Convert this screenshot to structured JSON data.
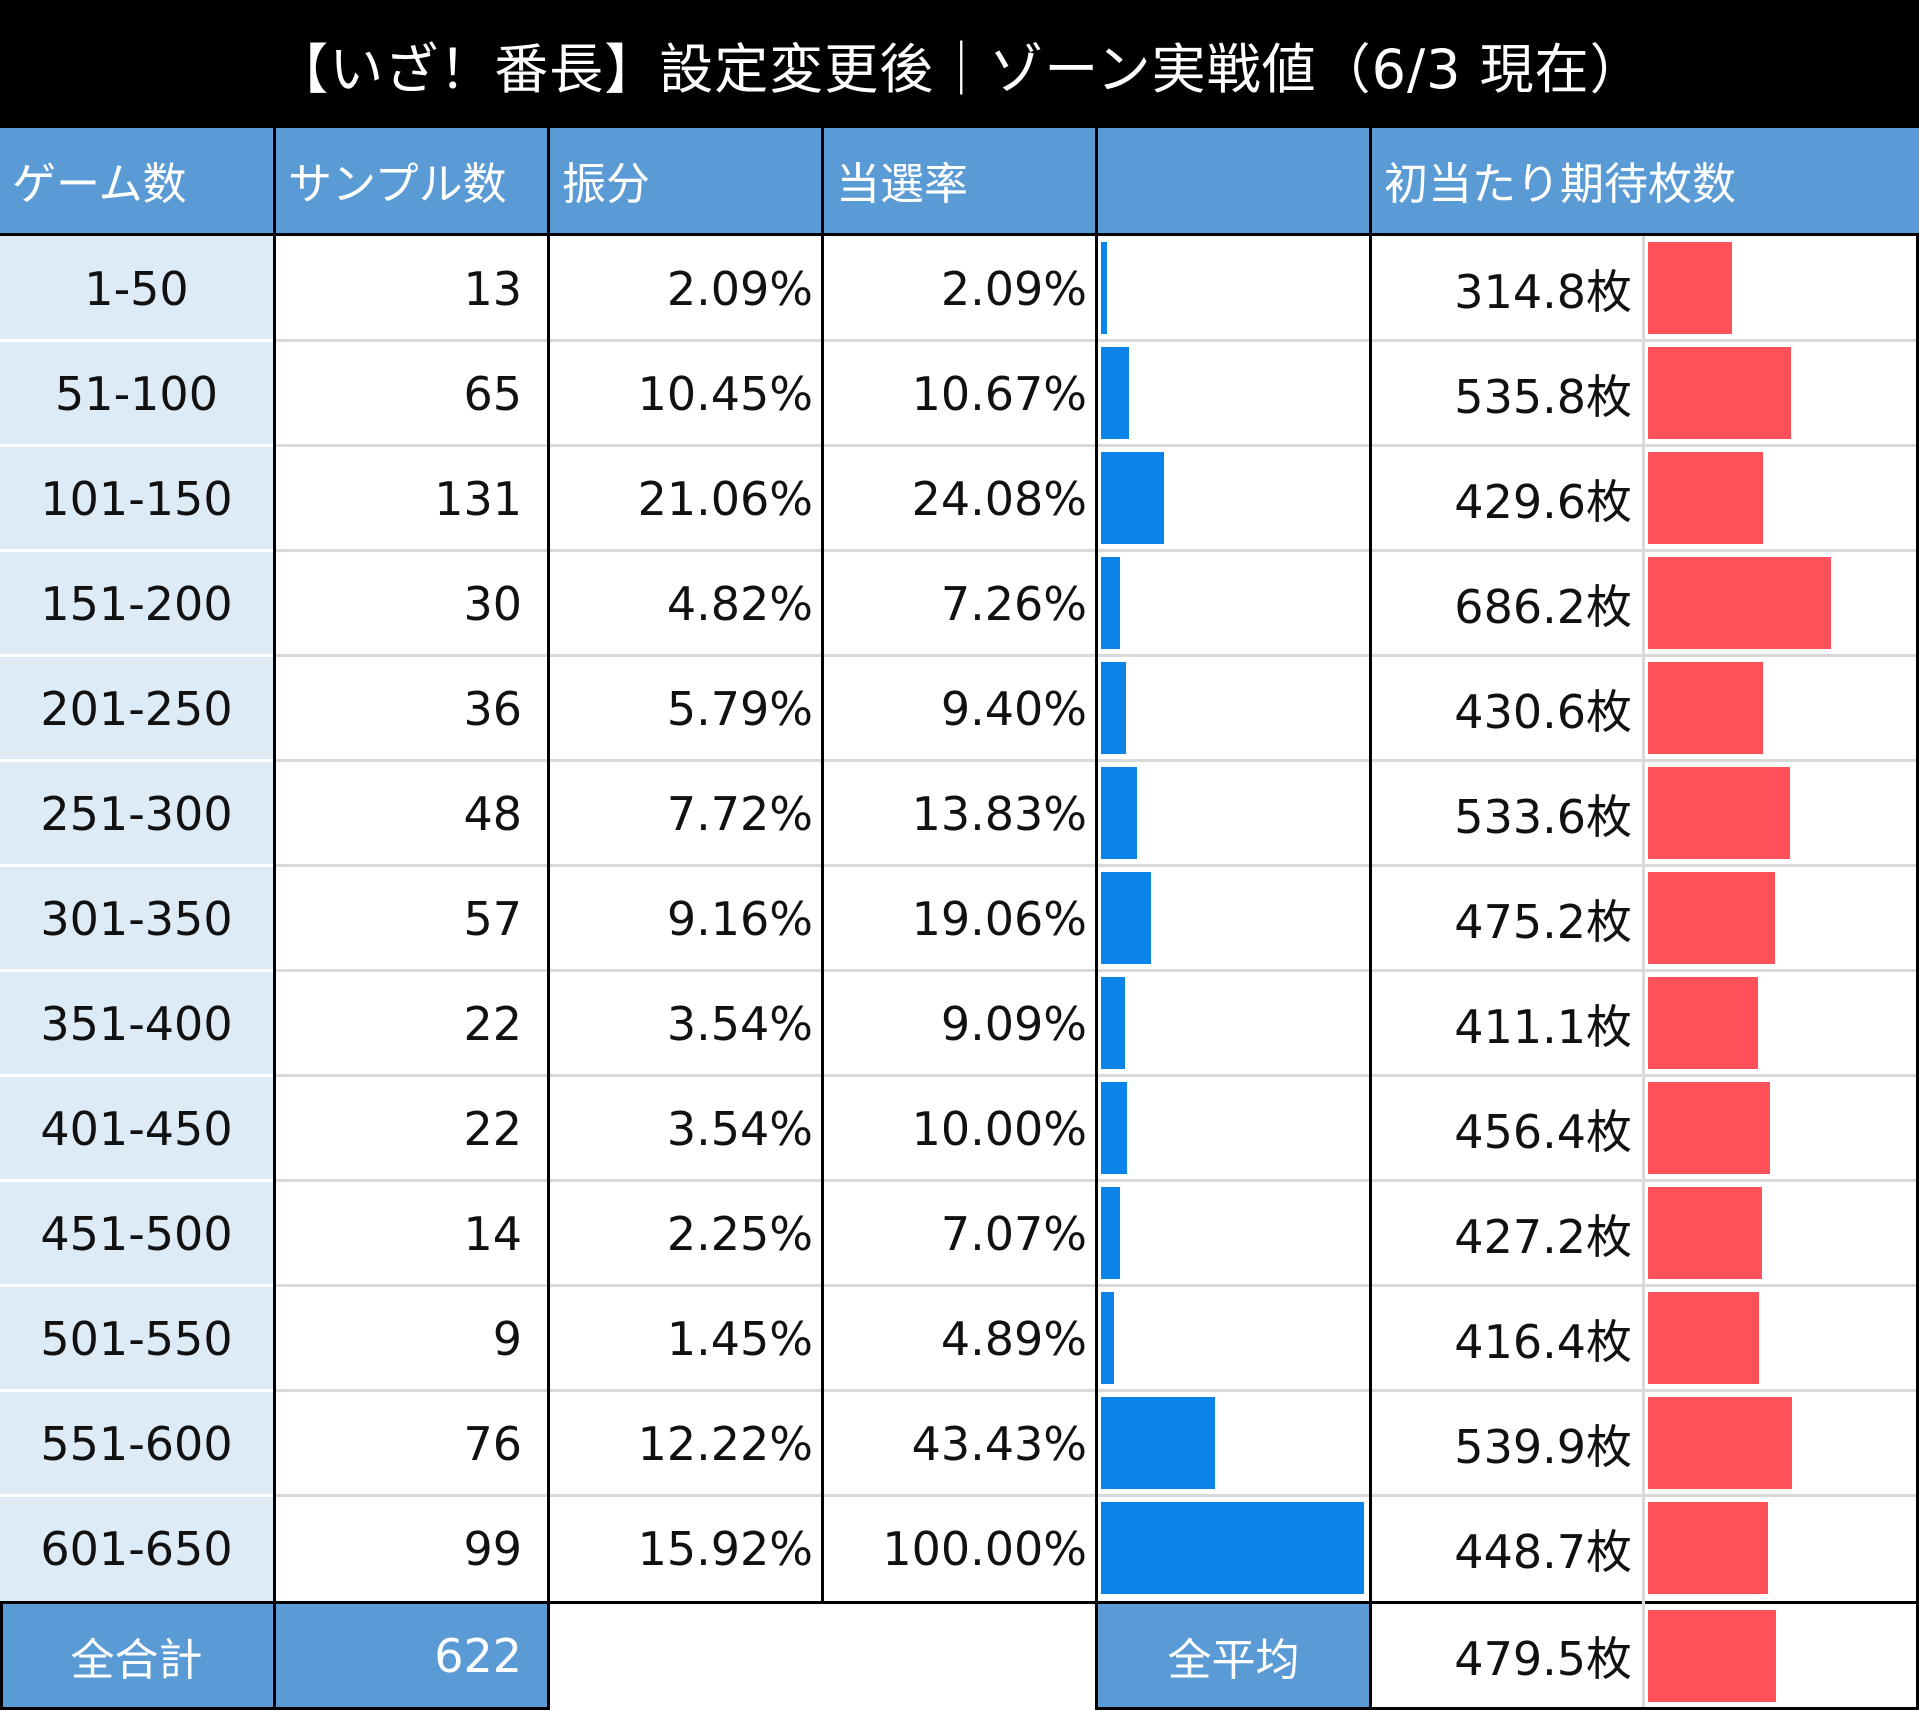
{
  "title": "【いざ！番長】設定変更後｜ゾーン実戦値（6/3 現在）",
  "colors": {
    "header": "#5b9bd5",
    "zone_bg": "#ddebf7",
    "bar_rate": "#0a84e8",
    "bar_coins": "#ff5159"
  },
  "headers": {
    "games": "ゲーム数",
    "samples": "サンプル数",
    "distribution": "振分",
    "rate": "当選率",
    "rate_bar": "",
    "coins": "初当たり期待枚数"
  },
  "chart_data": {
    "type": "table",
    "columns": [
      "ゲーム数",
      "サンプル数",
      "振分",
      "当選率",
      "初当たり期待枚数"
    ],
    "rows": [
      {
        "zone": "1-50",
        "samples": "13",
        "distribution": "2.09%",
        "rate": "2.09%",
        "rate_value": 2.09,
        "coins": "314.8枚",
        "coins_value": 314.8
      },
      {
        "zone": "51-100",
        "samples": "65",
        "distribution": "10.45%",
        "rate": "10.67%",
        "rate_value": 10.67,
        "coins": "535.8枚",
        "coins_value": 535.8
      },
      {
        "zone": "101-150",
        "samples": "131",
        "distribution": "21.06%",
        "rate": "24.08%",
        "rate_value": 24.08,
        "coins": "429.6枚",
        "coins_value": 429.6
      },
      {
        "zone": "151-200",
        "samples": "30",
        "distribution": "4.82%",
        "rate": "7.26%",
        "rate_value": 7.26,
        "coins": "686.2枚",
        "coins_value": 686.2
      },
      {
        "zone": "201-250",
        "samples": "36",
        "distribution": "5.79%",
        "rate": "9.40%",
        "rate_value": 9.4,
        "coins": "430.6枚",
        "coins_value": 430.6
      },
      {
        "zone": "251-300",
        "samples": "48",
        "distribution": "7.72%",
        "rate": "13.83%",
        "rate_value": 13.83,
        "coins": "533.6枚",
        "coins_value": 533.6
      },
      {
        "zone": "301-350",
        "samples": "57",
        "distribution": "9.16%",
        "rate": "19.06%",
        "rate_value": 19.06,
        "coins": "475.2枚",
        "coins_value": 475.2
      },
      {
        "zone": "351-400",
        "samples": "22",
        "distribution": "3.54%",
        "rate": "9.09%",
        "rate_value": 9.09,
        "coins": "411.1枚",
        "coins_value": 411.1
      },
      {
        "zone": "401-450",
        "samples": "22",
        "distribution": "3.54%",
        "rate": "10.00%",
        "rate_value": 10.0,
        "coins": "456.4枚",
        "coins_value": 456.4
      },
      {
        "zone": "451-500",
        "samples": "14",
        "distribution": "2.25%",
        "rate": "7.07%",
        "rate_value": 7.07,
        "coins": "427.2枚",
        "coins_value": 427.2
      },
      {
        "zone": "501-550",
        "samples": "9",
        "distribution": "1.45%",
        "rate": "4.89%",
        "rate_value": 4.89,
        "coins": "416.4枚",
        "coins_value": 416.4
      },
      {
        "zone": "551-600",
        "samples": "76",
        "distribution": "12.22%",
        "rate": "43.43%",
        "rate_value": 43.43,
        "coins": "539.9枚",
        "coins_value": 539.9
      },
      {
        "zone": "601-650",
        "samples": "99",
        "distribution": "15.92%",
        "rate": "100.00%",
        "rate_value": 100.0,
        "coins": "448.7枚",
        "coins_value": 448.7
      }
    ],
    "rate_bar_max": 100,
    "coins_bar_max": 686.2
  },
  "footer": {
    "total_label": "全合計",
    "total_value": "622",
    "avg_label": "全平均",
    "avg_value": "479.5枚",
    "avg_coins_value": 479.5
  }
}
